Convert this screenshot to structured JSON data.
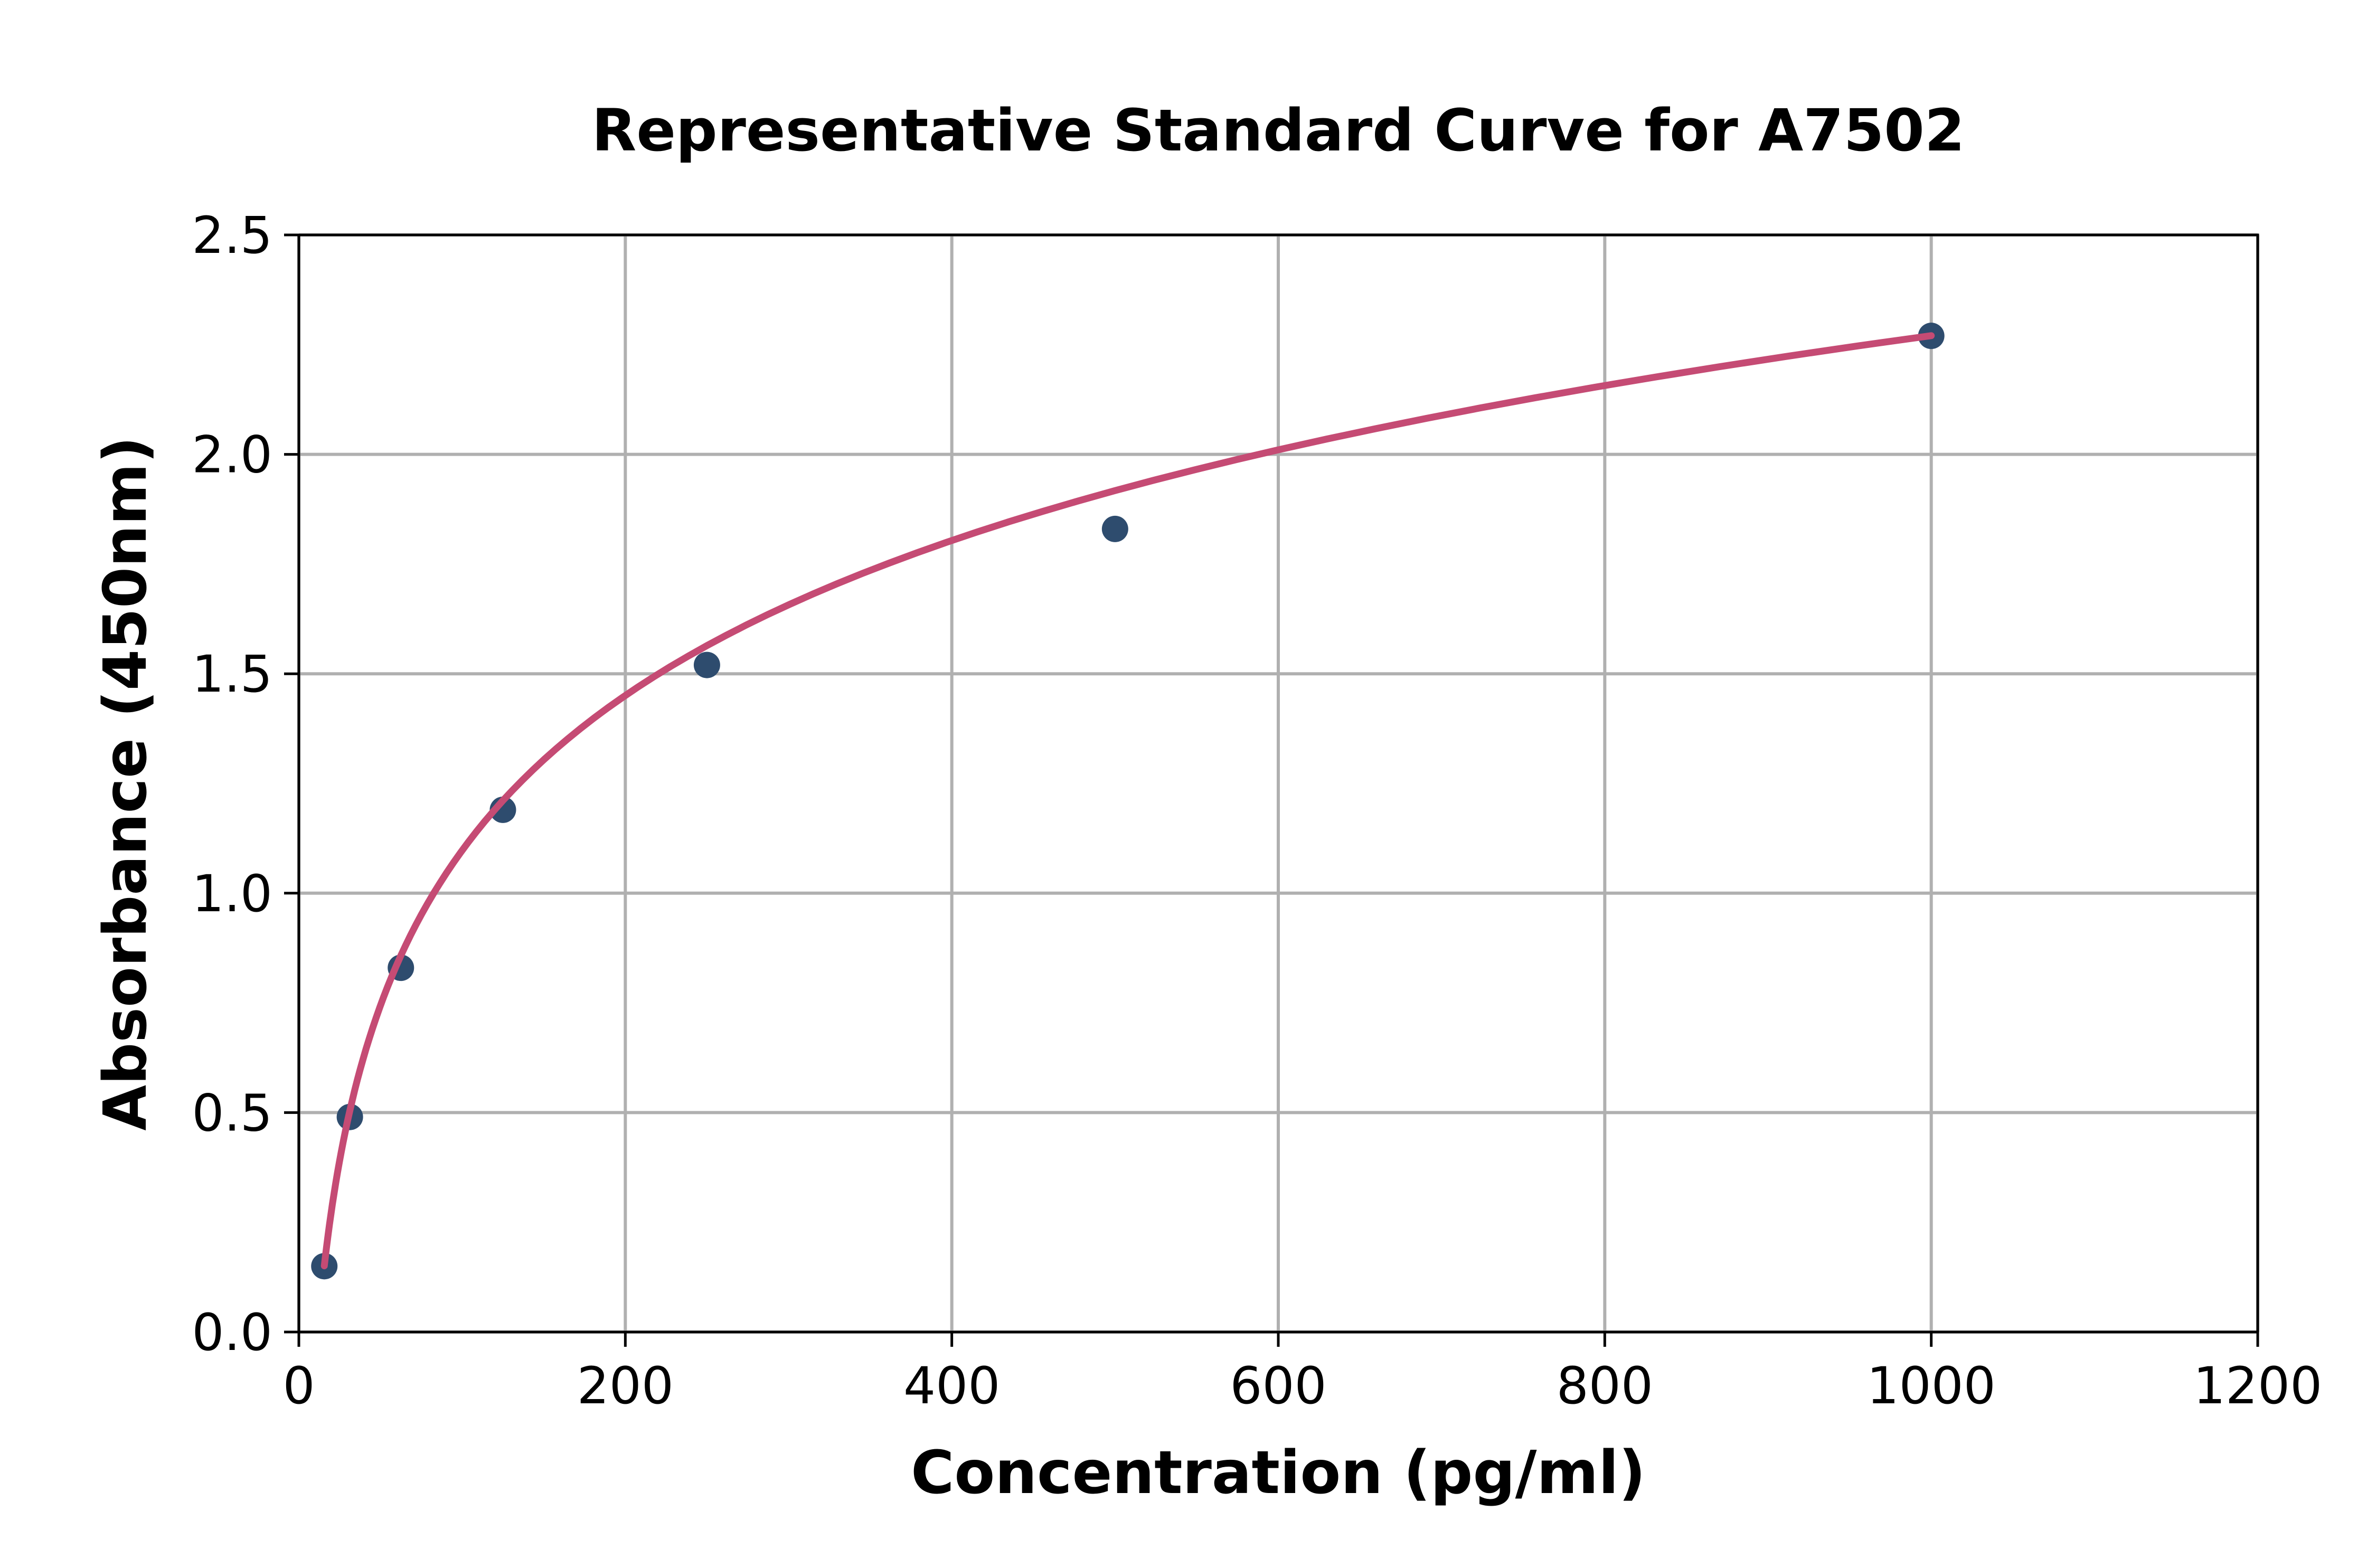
{
  "chart_data": {
    "type": "scatter",
    "title": "Representative Standard Curve for A7502",
    "xlabel": "Concentration (pg/ml)",
    "ylabel": "Absorbance (450nm)",
    "xlim": [
      0,
      1200
    ],
    "ylim": [
      0,
      2.5
    ],
    "x_ticks": [
      0,
      200,
      400,
      600,
      800,
      1000,
      1200
    ],
    "x_tick_labels": [
      "0",
      "200",
      "400",
      "600",
      "800",
      "1000",
      "1200"
    ],
    "y_ticks": [
      0,
      0.5,
      1.0,
      1.5,
      2.0,
      2.5
    ],
    "y_tick_labels": [
      "0.0",
      "0.5",
      "1.0",
      "1.5",
      "2.0",
      "2.5"
    ],
    "grid": true,
    "legend": "none",
    "points": [
      {
        "x": 15.6,
        "y": 0.15
      },
      {
        "x": 31.25,
        "y": 0.49
      },
      {
        "x": 62.5,
        "y": 0.83
      },
      {
        "x": 125,
        "y": 1.19
      },
      {
        "x": 250,
        "y": 1.52
      },
      {
        "x": 500,
        "y": 1.83
      },
      {
        "x": 1000,
        "y": 2.27
      }
    ],
    "fit_curve": {
      "model": "y = a*ln(x) + b",
      "a": 0.5095,
      "b": -1.249,
      "x_start": 15.6,
      "x_end": 1000
    },
    "colors": {
      "marker": "#2e4c6e",
      "curve": "#c54b74",
      "grid": "#b0b0b0",
      "axis": "#000000",
      "background": "#ffffff"
    }
  }
}
